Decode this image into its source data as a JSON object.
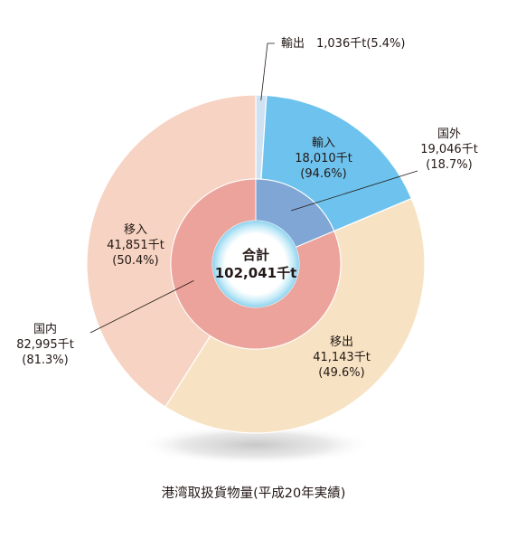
{
  "chart_data": {
    "type": "pie",
    "caption": "港湾取扱貨物量(平成20年実績)",
    "center": {
      "line1": "合計",
      "line2": "102,041千t"
    },
    "outer": [
      {
        "name": "国外",
        "value": 19046,
        "value_text": "19,046千t",
        "pct_text": "(18.7%)",
        "color": "#6ec3ee"
      },
      {
        "name": "国内",
        "value": 82995,
        "value_text": "82,995千t",
        "pct_text": "(81.3%)",
        "color": "#f6d3c2"
      }
    ],
    "inner": [
      {
        "name": "輸出",
        "value": 1036,
        "value_text": "1,036千t",
        "pct_text": "(5.4%)",
        "color": "#cfe2f3"
      },
      {
        "name": "輸入",
        "value": 18010,
        "value_text": "18,010千t",
        "pct_text": "(94.6%)",
        "color": "#6ec3ee"
      },
      {
        "name": "移出",
        "value": 41143,
        "value_text": "41,143千t",
        "pct_text": "(49.6%)",
        "color": "#f7e3c4"
      },
      {
        "name": "移入",
        "value": 41851,
        "value_text": "41,851千t",
        "pct_text": "(50.4%)",
        "color": "#f6d3c2"
      }
    ],
    "inner_ring_colors": {
      "export_import": "#7fa6d4",
      "domestic": "#eca39b"
    },
    "total": 102041
  }
}
